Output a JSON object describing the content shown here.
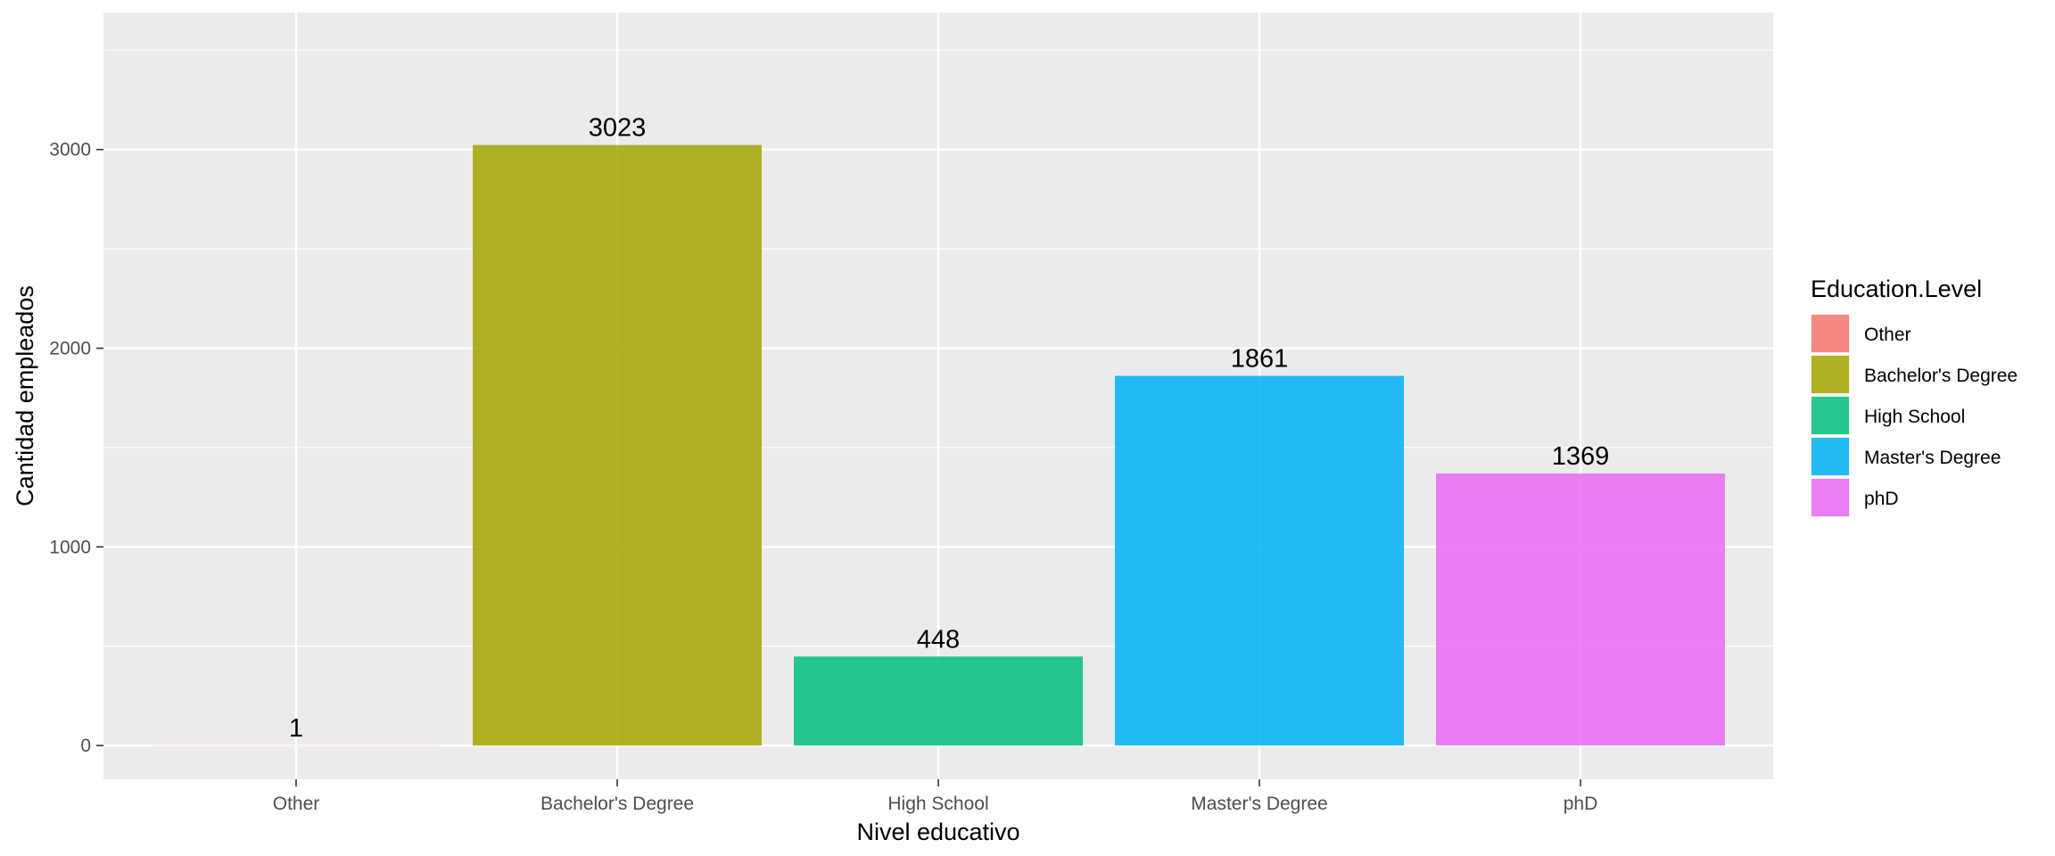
{
  "chart_data": {
    "type": "bar",
    "categories": [
      "Other",
      "Bachelor's Degree",
      "High School",
      "Master's Degree",
      "phD"
    ],
    "values": [
      1,
      3023,
      448,
      1861,
      1369
    ],
    "data_labels": [
      "1",
      "3023",
      "448",
      "1861",
      "1369"
    ],
    "colors": [
      "#F8766D",
      "#A3A500",
      "#00BF7D",
      "#00B0F6",
      "#E76BF3"
    ],
    "xlabel": "Nivel educativo",
    "ylabel": "Cantidad empleados",
    "ylim": [
      -170,
      3690
    ],
    "yticks": [
      0,
      1000,
      2000,
      3000
    ],
    "ytick_labels": [
      "0",
      "1000",
      "2000",
      "3000"
    ],
    "grid": true,
    "panel_background": "#EBEBEB",
    "legend": {
      "title": "Education.Level",
      "placement": "right",
      "entries": [
        "Other",
        "Bachelor's Degree",
        "High School",
        "Master's Degree",
        "phD"
      ]
    }
  }
}
